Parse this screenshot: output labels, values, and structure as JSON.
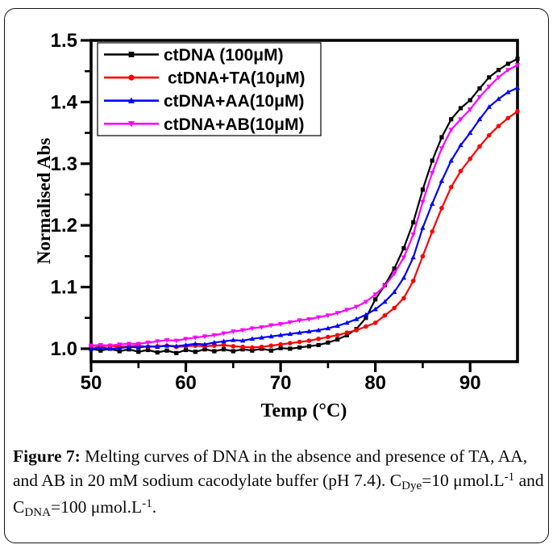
{
  "caption": {
    "segments": [
      {
        "text": "Figure 7:",
        "style": "bold"
      },
      {
        "text": " Melting curves of DNA in the absence and presence of TA, AA, and AB in 20 mM sodium cacodylate buffer (pH 7.4). C",
        "style": "normal"
      },
      {
        "text": "Dye",
        "style": "sub"
      },
      {
        "text": "=10 μmol.L",
        "style": "normal"
      },
      {
        "text": "-1",
        "style": "sup"
      },
      {
        "text": " and C",
        "style": "normal"
      },
      {
        "text": "DNA",
        "style": "sub"
      },
      {
        "text": "=100 μmol.L",
        "style": "normal"
      },
      {
        "text": "-1",
        "style": "sup"
      },
      {
        "text": ".",
        "style": "normal"
      }
    ]
  },
  "chart_data": {
    "type": "line",
    "title": "",
    "xlabel": "Temp (°C)",
    "ylabel": "Normalised Abs",
    "xlim": [
      50,
      95
    ],
    "ylim": [
      0.979,
      1.5
    ],
    "x_major_ticks": [
      50,
      60,
      70,
      80,
      90
    ],
    "x_minor_ticks": [
      55,
      65,
      75,
      85
    ],
    "y_major_ticks": [
      1.0,
      1.1,
      1.2,
      1.3,
      1.4,
      1.5
    ],
    "y_minor_ticks": [
      1.05,
      1.15,
      1.25,
      1.35,
      1.45
    ],
    "grid": false,
    "legend_position": "top-left",
    "x_start": 50,
    "x_step": 1,
    "axis_color": "#000000",
    "series": [
      {
        "name": "ctDNA (100μM)",
        "color": "#000000",
        "marker": "square",
        "values": [
          1.0,
          0.997,
          1.0,
          0.996,
          0.999,
          0.995,
          0.998,
          0.994,
          0.997,
          0.993,
          0.998,
          0.995,
          0.999,
          0.996,
          0.999,
          0.996,
          0.999,
          0.997,
          1.0,
          0.997,
          1.001,
          1.0,
          1.002,
          1.004,
          1.006,
          1.01,
          1.015,
          1.022,
          1.032,
          1.05,
          1.08,
          1.103,
          1.13,
          1.163,
          1.205,
          1.258,
          1.305,
          1.343,
          1.372,
          1.39,
          1.403,
          1.422,
          1.44,
          1.452,
          1.462,
          1.47
        ]
      },
      {
        "name": "ctDNA+TA(10μM)",
        "color": "#FF0000",
        "marker": "circle",
        "values": [
          1.005,
          1.004,
          1.005,
          1.003,
          1.004,
          1.005,
          1.003,
          1.004,
          1.005,
          1.003,
          1.004,
          1.005,
          1.004,
          1.005,
          1.006,
          1.004,
          1.003,
          1.002,
          1.003,
          1.005,
          1.007,
          1.009,
          1.011,
          1.013,
          1.016,
          1.019,
          1.022,
          1.026,
          1.03,
          1.036,
          1.042,
          1.054,
          1.066,
          1.082,
          1.11,
          1.15,
          1.19,
          1.228,
          1.262,
          1.288,
          1.308,
          1.328,
          1.346,
          1.361,
          1.374,
          1.385
        ]
      },
      {
        "name": "ctDNA+AA(10μM)",
        "color": "#0000FF",
        "marker": "triangle-up",
        "values": [
          1.0,
          1.002,
          1.0,
          1.001,
          1.003,
          1.002,
          1.004,
          1.003,
          1.005,
          1.004,
          1.006,
          1.008,
          1.007,
          1.01,
          1.012,
          1.014,
          1.013,
          1.016,
          1.018,
          1.02,
          1.022,
          1.024,
          1.026,
          1.028,
          1.03,
          1.033,
          1.037,
          1.042,
          1.048,
          1.055,
          1.064,
          1.076,
          1.092,
          1.115,
          1.148,
          1.196,
          1.235,
          1.272,
          1.305,
          1.33,
          1.35,
          1.372,
          1.392,
          1.405,
          1.416,
          1.423
        ]
      },
      {
        "name": "ctDNA+AB(10μM)",
        "color": "#FF00FF",
        "marker": "triangle-down",
        "values": [
          1.005,
          1.006,
          1.005,
          1.007,
          1.008,
          1.008,
          1.01,
          1.012,
          1.014,
          1.013,
          1.016,
          1.018,
          1.02,
          1.022,
          1.025,
          1.028,
          1.03,
          1.033,
          1.035,
          1.038,
          1.04,
          1.043,
          1.046,
          1.048,
          1.051,
          1.054,
          1.058,
          1.063,
          1.068,
          1.076,
          1.088,
          1.102,
          1.122,
          1.148,
          1.185,
          1.238,
          1.285,
          1.325,
          1.355,
          1.372,
          1.388,
          1.408,
          1.425,
          1.44,
          1.452,
          1.46
        ]
      }
    ]
  }
}
